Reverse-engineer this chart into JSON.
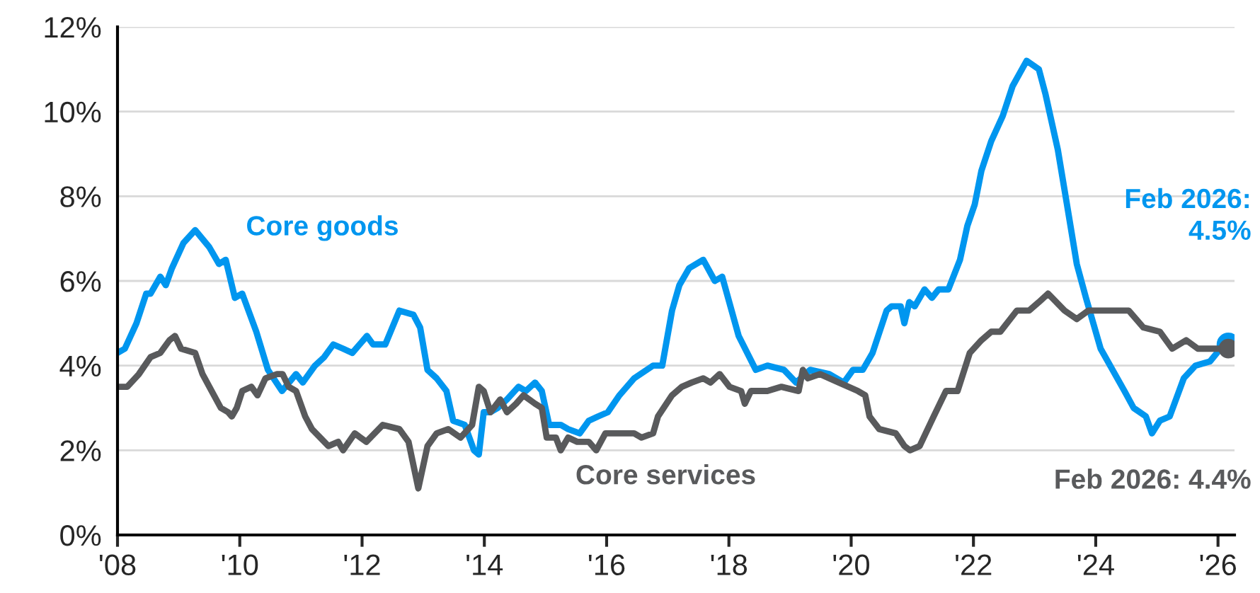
{
  "chart_data": {
    "type": "line",
    "xlim": [
      2008,
      2026.27
    ],
    "ylim": [
      0,
      12
    ],
    "xticks": [
      {
        "value": 2008,
        "label": "'08"
      },
      {
        "value": 2010,
        "label": "'10"
      },
      {
        "value": 2012,
        "label": "'12"
      },
      {
        "value": 2014,
        "label": "'14"
      },
      {
        "value": 2016,
        "label": "'16"
      },
      {
        "value": 2018,
        "label": "'18"
      },
      {
        "value": 2020,
        "label": "'20"
      },
      {
        "value": 2022,
        "label": "'22"
      },
      {
        "value": 2024,
        "label": "'24"
      },
      {
        "value": 2026,
        "label": "'26"
      }
    ],
    "yticks": [
      {
        "value": 0,
        "label": "0%"
      },
      {
        "value": 2,
        "label": "2%"
      },
      {
        "value": 4,
        "label": "4%"
      },
      {
        "value": 6,
        "label": "6%"
      },
      {
        "value": 8,
        "label": "8%"
      },
      {
        "value": 10,
        "label": "10%"
      },
      {
        "value": 12,
        "label": "12%"
      }
    ],
    "grid": "y",
    "legend": false,
    "line_style": "solid",
    "series": [
      {
        "name": "Core goods",
        "color": "#0096ef",
        "x": [
          2008.0,
          2008.12,
          2008.31,
          2008.47,
          2008.54,
          2008.7,
          2008.79,
          2008.89,
          2009.08,
          2009.27,
          2009.5,
          2009.66,
          2009.77,
          2009.92,
          2010.04,
          2010.27,
          2010.46,
          2010.69,
          2010.92,
          2011.03,
          2011.23,
          2011.38,
          2011.53,
          2011.69,
          2011.84,
          2012.08,
          2012.18,
          2012.38,
          2012.61,
          2012.84,
          2012.95,
          2013.07,
          2013.22,
          2013.38,
          2013.49,
          2013.68,
          2013.83,
          2013.91,
          2013.99,
          2014.1,
          2014.22,
          2014.37,
          2014.56,
          2014.68,
          2014.83,
          2014.94,
          2015.06,
          2015.25,
          2015.37,
          2015.56,
          2015.71,
          2015.86,
          2016.02,
          2016.21,
          2016.45,
          2016.76,
          2016.91,
          2017.07,
          2017.19,
          2017.35,
          2017.58,
          2017.77,
          2017.89,
          2018.16,
          2018.44,
          2018.63,
          2018.9,
          2019.1,
          2019.33,
          2019.64,
          2019.88,
          2020.03,
          2020.19,
          2020.35,
          2020.58,
          2020.66,
          2020.81,
          2020.87,
          2020.95,
          2021.04,
          2021.2,
          2021.32,
          2021.43,
          2021.59,
          2021.78,
          2021.9,
          2022.02,
          2022.13,
          2022.29,
          2022.48,
          2022.64,
          2022.87,
          2023.07,
          2023.18,
          2023.38,
          2023.53,
          2023.69,
          2023.84,
          2024.08,
          2024.47,
          2024.62,
          2024.82,
          2024.92,
          2025.05,
          2025.21,
          2025.44,
          2025.63,
          2025.87,
          2026.04,
          2026.17
        ],
        "values": [
          4.3,
          4.4,
          5.0,
          5.7,
          5.7,
          6.1,
          5.9,
          6.3,
          6.9,
          7.2,
          6.8,
          6.4,
          6.5,
          5.6,
          5.7,
          4.8,
          3.9,
          3.4,
          3.8,
          3.6,
          4.0,
          4.2,
          4.5,
          4.4,
          4.3,
          4.7,
          4.5,
          4.5,
          5.3,
          5.2,
          4.9,
          3.9,
          3.7,
          3.4,
          2.7,
          2.6,
          2.0,
          1.9,
          2.9,
          2.9,
          3.0,
          3.2,
          3.5,
          3.4,
          3.6,
          3.4,
          2.6,
          2.6,
          2.5,
          2.4,
          2.7,
          2.8,
          2.9,
          3.3,
          3.7,
          4.0,
          4.0,
          5.3,
          5.9,
          6.3,
          6.5,
          6.0,
          6.1,
          4.7,
          3.9,
          4.0,
          3.9,
          3.6,
          3.9,
          3.8,
          3.6,
          3.9,
          3.9,
          4.3,
          5.3,
          5.4,
          5.4,
          5.0,
          5.5,
          5.4,
          5.8,
          5.6,
          5.8,
          5.8,
          6.5,
          7.3,
          7.8,
          8.6,
          9.3,
          9.9,
          10.6,
          11.2,
          11.0,
          10.4,
          9.1,
          7.8,
          6.4,
          5.6,
          4.4,
          3.4,
          3.0,
          2.8,
          2.4,
          2.7,
          2.8,
          3.7,
          4.0,
          4.1,
          4.4,
          4.5
        ]
      },
      {
        "name": "Core services",
        "color": "#595a5c",
        "x": [
          2008.0,
          2008.16,
          2008.35,
          2008.54,
          2008.7,
          2008.85,
          2008.94,
          2009.04,
          2009.27,
          2009.39,
          2009.54,
          2009.69,
          2009.81,
          2009.87,
          2009.95,
          2010.04,
          2010.19,
          2010.29,
          2010.42,
          2010.61,
          2010.7,
          2010.8,
          2010.92,
          2011.07,
          2011.18,
          2011.45,
          2011.61,
          2011.69,
          2011.88,
          2012.07,
          2012.34,
          2012.61,
          2012.76,
          2012.92,
          2013.07,
          2013.22,
          2013.41,
          2013.61,
          2013.8,
          2013.91,
          2013.99,
          2014.1,
          2014.26,
          2014.37,
          2014.52,
          2014.64,
          2014.83,
          2014.94,
          2015.02,
          2015.17,
          2015.25,
          2015.37,
          2015.52,
          2015.71,
          2015.83,
          2015.98,
          2016.14,
          2016.45,
          2016.57,
          2016.76,
          2016.84,
          2017.07,
          2017.23,
          2017.39,
          2017.58,
          2017.7,
          2017.85,
          2018.01,
          2018.2,
          2018.26,
          2018.36,
          2018.63,
          2018.86,
          2019.14,
          2019.21,
          2019.29,
          2019.49,
          2019.8,
          2020.11,
          2020.23,
          2020.3,
          2020.46,
          2020.73,
          2020.87,
          2020.96,
          2021.12,
          2021.35,
          2021.55,
          2021.74,
          2021.94,
          2022.13,
          2022.29,
          2022.44,
          2022.71,
          2022.91,
          2023.07,
          2023.22,
          2023.49,
          2023.69,
          2023.88,
          2024.16,
          2024.54,
          2024.78,
          2025.05,
          2025.25,
          2025.48,
          2025.67,
          2025.87,
          2026.17
        ],
        "values": [
          3.5,
          3.5,
          3.8,
          4.2,
          4.3,
          4.6,
          4.7,
          4.4,
          4.3,
          3.8,
          3.4,
          3.0,
          2.9,
          2.8,
          3.0,
          3.4,
          3.5,
          3.3,
          3.7,
          3.8,
          3.8,
          3.5,
          3.4,
          2.8,
          2.5,
          2.1,
          2.2,
          2.0,
          2.4,
          2.2,
          2.6,
          2.5,
          2.2,
          1.1,
          2.1,
          2.4,
          2.5,
          2.3,
          2.6,
          3.5,
          3.4,
          2.9,
          3.2,
          2.9,
          3.1,
          3.3,
          3.1,
          3.0,
          2.3,
          2.3,
          2.0,
          2.3,
          2.2,
          2.2,
          2.0,
          2.4,
          2.4,
          2.4,
          2.3,
          2.4,
          2.8,
          3.3,
          3.5,
          3.6,
          3.7,
          3.6,
          3.8,
          3.5,
          3.4,
          3.1,
          3.4,
          3.4,
          3.5,
          3.4,
          3.9,
          3.7,
          3.8,
          3.6,
          3.4,
          3.3,
          2.8,
          2.5,
          2.4,
          2.1,
          2.0,
          2.1,
          2.8,
          3.4,
          3.4,
          4.3,
          4.6,
          4.8,
          4.8,
          5.3,
          5.3,
          5.5,
          5.7,
          5.3,
          5.1,
          5.3,
          5.3,
          5.3,
          4.9,
          4.8,
          4.4,
          4.6,
          4.4,
          4.4,
          4.4
        ]
      }
    ],
    "annotations": [
      "Feb 2026:\n4.5%",
      "Feb 2026: 4.4%"
    ]
  }
}
